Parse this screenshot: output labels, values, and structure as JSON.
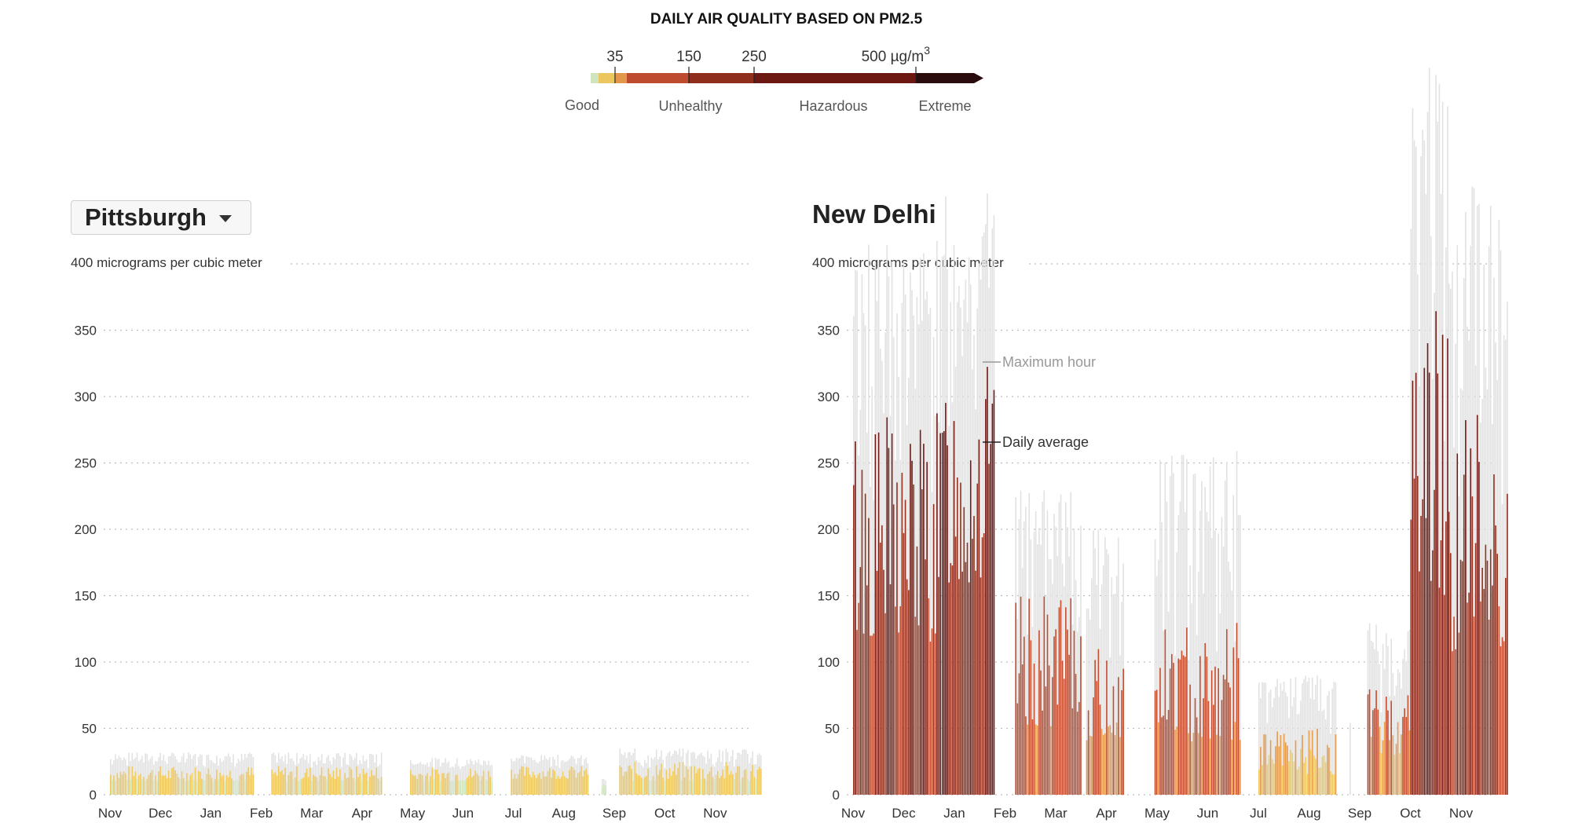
{
  "legend": {
    "title": "DAILY AIR QUALITY BASED ON PM2.5",
    "ticks": [
      "35",
      "150",
      "250",
      "500 µg/m"
    ],
    "unit_superscript": "3",
    "categories": [
      "Good",
      "Unhealthy",
      "Hazardous",
      "Extreme"
    ],
    "colors": [
      "#cfe4bf",
      "#ecc75f",
      "#e3974a",
      "#bf4b2e",
      "#8e2e1b",
      "#6d1713",
      "#2a0c0d"
    ]
  },
  "selector": {
    "selected_city": "Pittsburgh"
  },
  "chart_data": [
    {
      "type": "bar",
      "city": "Pittsburgh",
      "ylabel_top": "400 micrograms per cubic meter",
      "y_ticks": [
        "0",
        "50",
        "100",
        "150",
        "200",
        "250",
        "300",
        "350"
      ],
      "ylim": [
        0,
        400
      ],
      "x_ticks": [
        "Nov",
        "Dec",
        "Jan",
        "Feb",
        "Mar",
        "Apr",
        "May",
        "Jun",
        "Jul",
        "Aug",
        "Sep",
        "Oct",
        "Nov"
      ],
      "segments": [
        {
          "start_month": 0.0,
          "end_month": 2.85,
          "avg": [
            10,
            22
          ],
          "max": [
            20,
            32
          ]
        },
        {
          "start_month": 3.2,
          "end_month": 5.4,
          "avg": [
            10,
            22
          ],
          "max": [
            18,
            32
          ]
        },
        {
          "start_month": 5.95,
          "end_month": 7.6,
          "avg": [
            10,
            21
          ],
          "max": [
            18,
            28
          ]
        },
        {
          "start_month": 7.95,
          "end_month": 9.5,
          "avg": [
            12,
            22
          ],
          "max": [
            20,
            30
          ]
        },
        {
          "start_month": 9.75,
          "end_month": 9.85,
          "avg": [
            6,
            8
          ],
          "max": [
            10,
            12
          ]
        },
        {
          "start_month": 10.1,
          "end_month": 12.95,
          "avg": [
            10,
            25
          ],
          "max": [
            18,
            35
          ]
        }
      ],
      "series": [
        {
          "name": "Maximum hour"
        },
        {
          "name": "Daily average"
        }
      ]
    },
    {
      "type": "bar",
      "city": "New Delhi",
      "ylabel_top": "400 micrograms per cubic meter",
      "y_ticks": [
        "0",
        "50",
        "100",
        "150",
        "200",
        "250",
        "300",
        "350"
      ],
      "ylim": [
        0,
        400
      ],
      "x_ticks": [
        "Nov",
        "Dec",
        "Jan",
        "Feb",
        "Mar",
        "Apr",
        "May",
        "Jun",
        "Jul",
        "Aug",
        "Sep",
        "Oct",
        "Nov"
      ],
      "annotations": [
        "Maximum hour",
        "Daily average"
      ],
      "segments": [
        {
          "start_month": 0.0,
          "end_month": 1.75,
          "avg": [
            110,
            290
          ],
          "max": [
            200,
            420
          ]
        },
        {
          "start_month": 1.75,
          "end_month": 2.8,
          "avg": [
            150,
            330
          ],
          "max": [
            260,
            460
          ]
        },
        {
          "start_month": 3.2,
          "end_month": 4.5,
          "avg": [
            50,
            150
          ],
          "max": [
            100,
            230
          ]
        },
        {
          "start_month": 4.6,
          "end_month": 5.35,
          "avg": [
            40,
            110
          ],
          "max": [
            60,
            200
          ]
        },
        {
          "start_month": 5.95,
          "end_month": 7.65,
          "avg": [
            40,
            130
          ],
          "max": [
            70,
            260
          ]
        },
        {
          "start_month": 8.0,
          "end_month": 9.55,
          "avg": [
            15,
            50
          ],
          "max": [
            40,
            90
          ]
        },
        {
          "start_month": 9.8,
          "end_month": 9.82,
          "avg": [
            0,
            0
          ],
          "max": [
            50,
            55
          ]
        },
        {
          "start_month": 10.15,
          "end_month": 11.0,
          "avg": [
            30,
            80
          ],
          "max": [
            50,
            130
          ]
        },
        {
          "start_month": 11.0,
          "end_month": 11.75,
          "avg": [
            150,
            380
          ],
          "max": [
            250,
            560
          ]
        },
        {
          "start_month": 11.75,
          "end_month": 13.0,
          "avg": [
            100,
            300
          ],
          "max": [
            180,
            460
          ]
        }
      ],
      "series": [
        {
          "name": "Maximum hour"
        },
        {
          "name": "Daily average"
        }
      ]
    }
  ]
}
